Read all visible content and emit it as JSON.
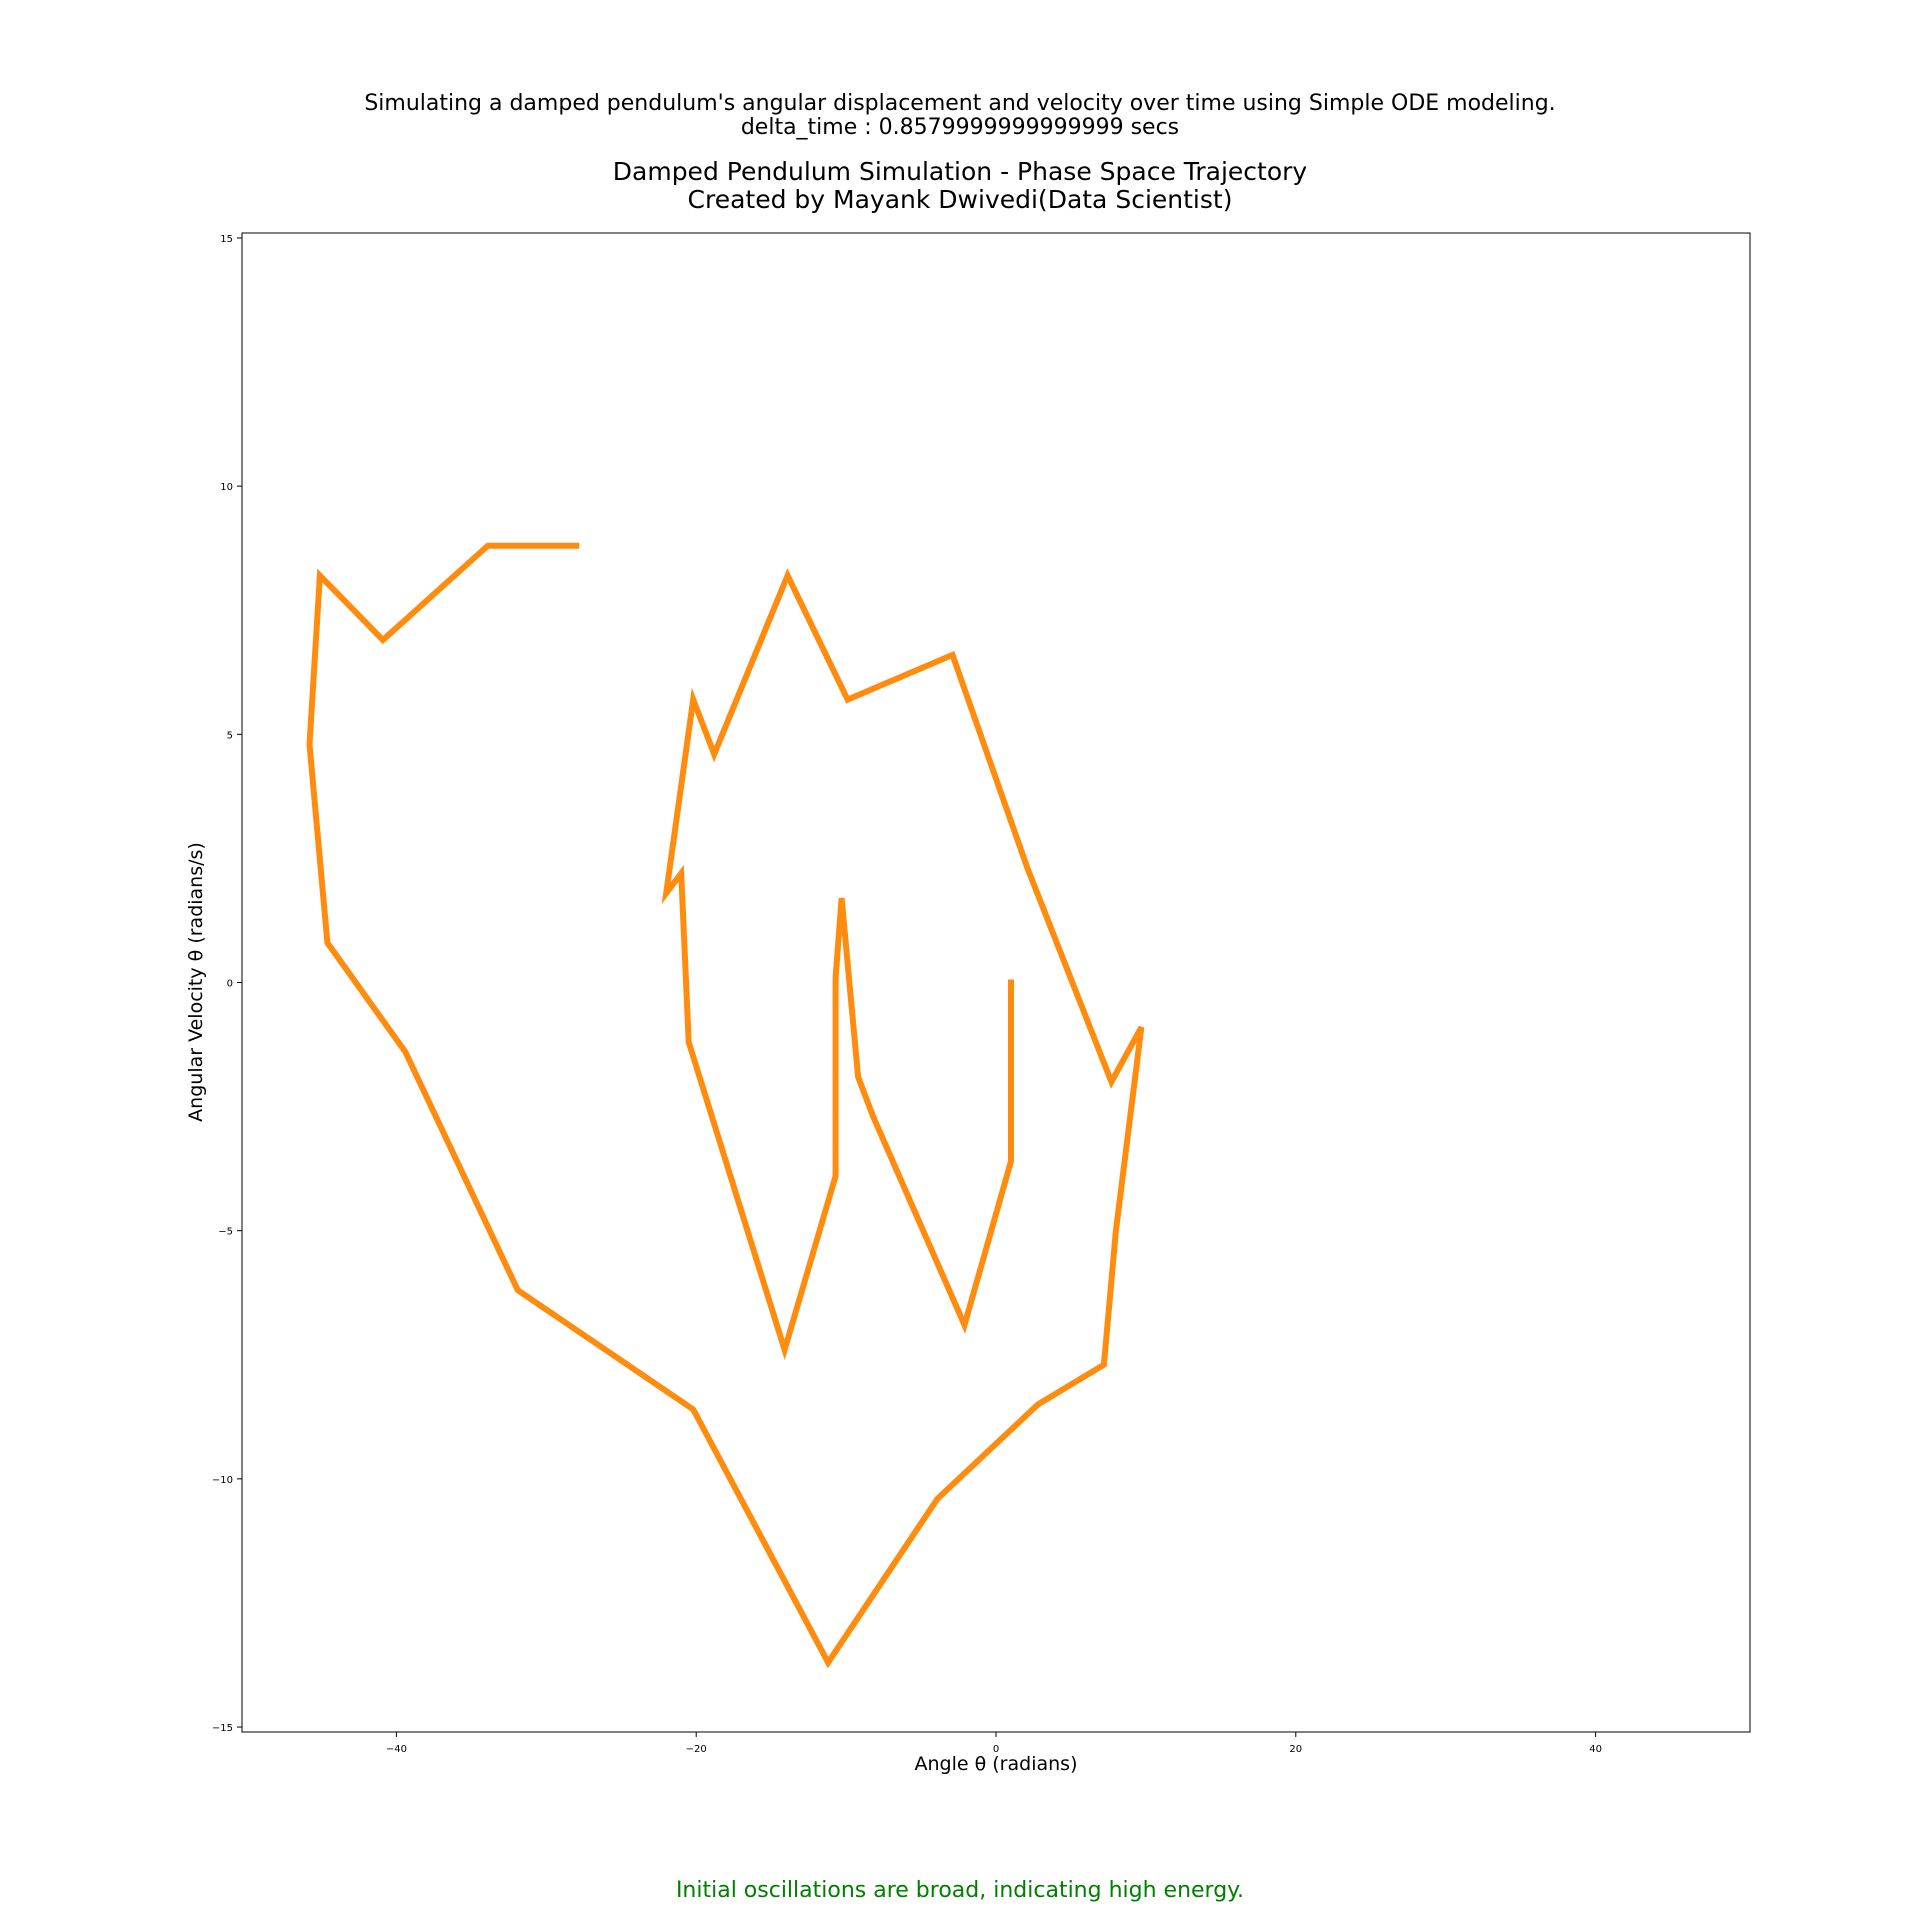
{
  "suptitle": {
    "line1": "Simulating a damped pendulum's angular displacement and velocity over time using Simple ODE modeling.",
    "line2": "delta_time : 0.8579999999999999 secs"
  },
  "annotation": "Initial oscillations are broad, indicating high energy.",
  "colors": {
    "line": "#ff8c0f",
    "annotation": "#008000",
    "axes": "#000000"
  },
  "chart_data": {
    "type": "line",
    "title": "Damped Pendulum Simulation - Phase Space Trajectory",
    "subtitle": "Created by Mayank Dwivedi(Data Scientist)",
    "xlabel": "Angle θ (radians)",
    "ylabel": "Angular Velocity θ (radians/s)",
    "xlim": [
      -50.3,
      50.3
    ],
    "ylim": [
      -15.1,
      15.1
    ],
    "xticks": [
      -40,
      -20,
      0,
      20,
      40
    ],
    "xtick_labels": [
      "−40",
      "−20",
      "0",
      "20",
      "40"
    ],
    "yticks": [
      -15,
      -10,
      -5,
      0,
      5,
      10,
      15
    ],
    "ytick_labels": [
      "−15",
      "−10",
      "−5",
      "0",
      "5",
      "10",
      "15"
    ],
    "grid": false,
    "series": [
      {
        "x": [
          1.0,
          1.0,
          -2.1,
          -8.2,
          -9.2,
          -10.3,
          -10.7,
          -10.7,
          -14.1,
          -20.5,
          -21.0,
          -22.0,
          -20.2,
          -18.8,
          -13.9,
          -9.9,
          -2.9,
          2.1,
          7.7,
          9.7,
          8.0,
          7.2,
          2.8,
          -3.9,
          -11.2,
          -20.2,
          -31.9,
          -39.4,
          -44.6,
          -45.8,
          -45.1,
          -40.9,
          -33.9,
          -28.0
        ],
        "y": [
          0.0,
          -3.6,
          -6.9,
          -2.7,
          -1.9,
          1.7,
          0.1,
          -3.9,
          -7.4,
          -1.2,
          2.2,
          1.8,
          5.7,
          4.6,
          8.2,
          5.7,
          6.6,
          2.3,
          -2.0,
          -0.9,
          -5.0,
          -7.7,
          -8.5,
          -10.4,
          -13.7,
          -8.6,
          -6.2,
          -1.4,
          0.8,
          4.8,
          8.2,
          6.9,
          8.8,
          8.8
        ]
      }
    ]
  }
}
